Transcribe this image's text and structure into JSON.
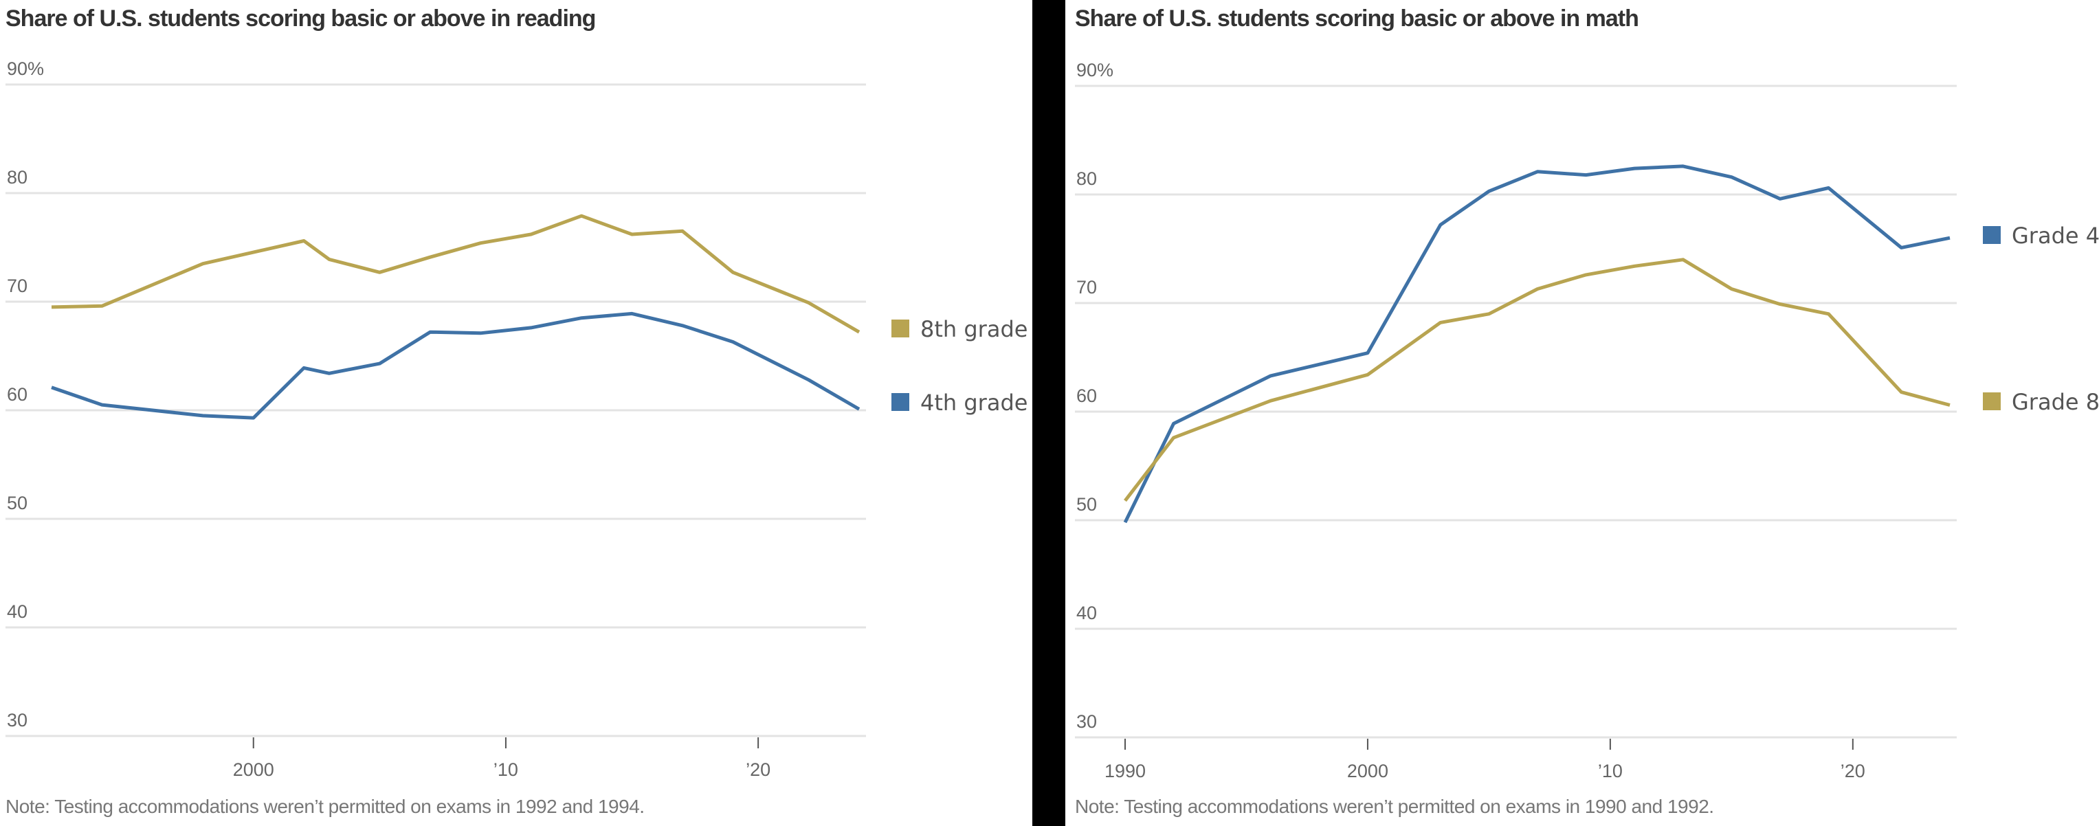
{
  "colors": {
    "gold": "#b8a451",
    "blue": "#3f72a6",
    "grid": "#e3e3e3",
    "divider": "#000000"
  },
  "chart_data": [
    {
      "type": "line",
      "title": "Share of U.S. students scoring basic or above in reading",
      "xlabel": "",
      "ylabel": "",
      "ylim": [
        30,
        90
      ],
      "xlim": [
        1992,
        2024
      ],
      "y_ticks": [
        90,
        80,
        70,
        60,
        50,
        40,
        30
      ],
      "y_tick_labels": [
        "90%",
        "80",
        "70",
        "60",
        "50",
        "40",
        "30"
      ],
      "x_ticks": [
        2000,
        2010,
        2020
      ],
      "x_tick_labels": [
        "2000",
        "’10",
        "’20"
      ],
      "grid": true,
      "legend_position": "right",
      "note": "Note: Testing accommodations weren’t permitted on exams in 1992 and 1994.",
      "series": [
        {
          "name": "8th grade",
          "color": "gold",
          "x": [
            1992,
            1994,
            1998,
            2002,
            2003,
            2005,
            2007,
            2009,
            2011,
            2013,
            2015,
            2017,
            2019,
            2022,
            2024
          ],
          "values": [
            69.5,
            69.6,
            73.5,
            75.6,
            73.9,
            72.7,
            74.1,
            75.4,
            76.2,
            77.9,
            76.2,
            76.5,
            72.7,
            69.9,
            67.2
          ]
        },
        {
          "name": "4th grade",
          "color": "blue",
          "x": [
            1992,
            1994,
            1998,
            2000,
            2002,
            2003,
            2005,
            2007,
            2009,
            2011,
            2013,
            2015,
            2017,
            2019,
            2022,
            2024
          ],
          "values": [
            62.1,
            60.5,
            59.5,
            59.3,
            63.9,
            63.4,
            64.3,
            67.2,
            67.1,
            67.6,
            68.5,
            68.9,
            67.8,
            66.3,
            62.8,
            60.1
          ]
        }
      ]
    },
    {
      "type": "line",
      "title": "Share of U.S. students scoring basic or above in math",
      "xlabel": "",
      "ylabel": "",
      "ylim": [
        30,
        90
      ],
      "xlim": [
        1990,
        2024
      ],
      "y_ticks": [
        90,
        80,
        70,
        60,
        50,
        40,
        30
      ],
      "y_tick_labels": [
        "90%",
        "80",
        "70",
        "60",
        "50",
        "40",
        "30"
      ],
      "x_ticks": [
        1990,
        2000,
        2010,
        2020
      ],
      "x_tick_labels": [
        "1990",
        "2000",
        "’10",
        "’20"
      ],
      "grid": true,
      "legend_position": "right",
      "note": "Note: Testing accommodations weren’t permitted on exams in 1990 and 1992.",
      "series": [
        {
          "name": "Grade 4",
          "color": "blue",
          "x": [
            1990,
            1992,
            1996,
            2000,
            2003,
            2005,
            2007,
            2009,
            2011,
            2013,
            2015,
            2017,
            2019,
            2022,
            2024
          ],
          "values": [
            49.8,
            58.9,
            63.3,
            65.4,
            77.2,
            80.3,
            82.1,
            81.8,
            82.4,
            82.6,
            81.6,
            79.6,
            80.6,
            75.1,
            76.0
          ]
        },
        {
          "name": "Grade 8",
          "color": "gold",
          "x": [
            1990,
            1992,
            1996,
            2000,
            2003,
            2005,
            2007,
            2009,
            2011,
            2013,
            2015,
            2017,
            2019,
            2022,
            2024
          ],
          "values": [
            51.8,
            57.6,
            61.0,
            63.4,
            68.2,
            69.0,
            71.3,
            72.6,
            73.4,
            74.0,
            71.3,
            69.9,
            69.0,
            61.8,
            60.6
          ]
        }
      ]
    }
  ]
}
